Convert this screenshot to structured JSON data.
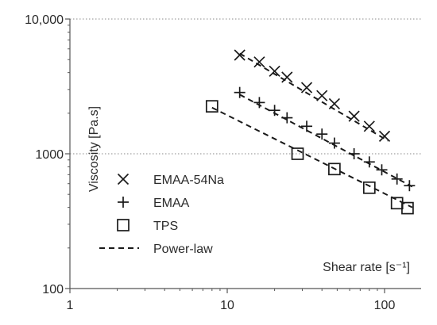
{
  "chart_data": {
    "type": "scatter",
    "xscale": "log",
    "yscale": "log",
    "xlim": [
      1,
      150
    ],
    "ylim": [
      100,
      10000
    ],
    "x_ticks": [
      {
        "value": 1,
        "label": "1"
      },
      {
        "value": 10,
        "label": "10"
      },
      {
        "value": 100,
        "label": "100"
      }
    ],
    "y_ticks": [
      {
        "value": 100,
        "label": "100"
      },
      {
        "value": 1000,
        "label": "1000"
      },
      {
        "value": 10000,
        "label": "10,000"
      }
    ],
    "gridlines_y": [
      1000,
      10000
    ],
    "xlabel": "Shear rate [s⁻¹]",
    "ylabel": "Viscosity [Pa.s]",
    "legend_position": "lower-left",
    "series": [
      {
        "name": "EMAA-54Na",
        "marker": "x",
        "color": "#1a1a1a",
        "x": [
          12,
          16,
          20,
          24,
          32,
          40,
          48,
          64,
          80,
          100
        ],
        "y": [
          5400,
          4800,
          4100,
          3700,
          3100,
          2700,
          2350,
          1900,
          1600,
          1350
        ]
      },
      {
        "name": "EMAA",
        "marker": "plus",
        "color": "#1a1a1a",
        "x": [
          12,
          16,
          20,
          24,
          32,
          40,
          48,
          64,
          80,
          96,
          120,
          144
        ],
        "y": [
          2850,
          2400,
          2100,
          1850,
          1600,
          1400,
          1200,
          1000,
          870,
          760,
          650,
          580
        ]
      },
      {
        "name": "TPS",
        "marker": "square",
        "color": "#1a1a1a",
        "x": [
          8,
          28,
          48,
          80,
          120,
          140
        ],
        "y": [
          2250,
          1000,
          770,
          560,
          430,
          395
        ]
      },
      {
        "name": "Power-law",
        "marker": "dashed-line",
        "color": "#1a1a1a",
        "lines": [
          {
            "x": [
              12,
              105
            ],
            "y": [
              5550,
              1250
            ]
          },
          {
            "x": [
              12,
              150
            ],
            "y": [
              2750,
              570
            ]
          },
          {
            "x": [
              8,
              150
            ],
            "y": [
              2200,
              400
            ]
          }
        ]
      }
    ]
  }
}
